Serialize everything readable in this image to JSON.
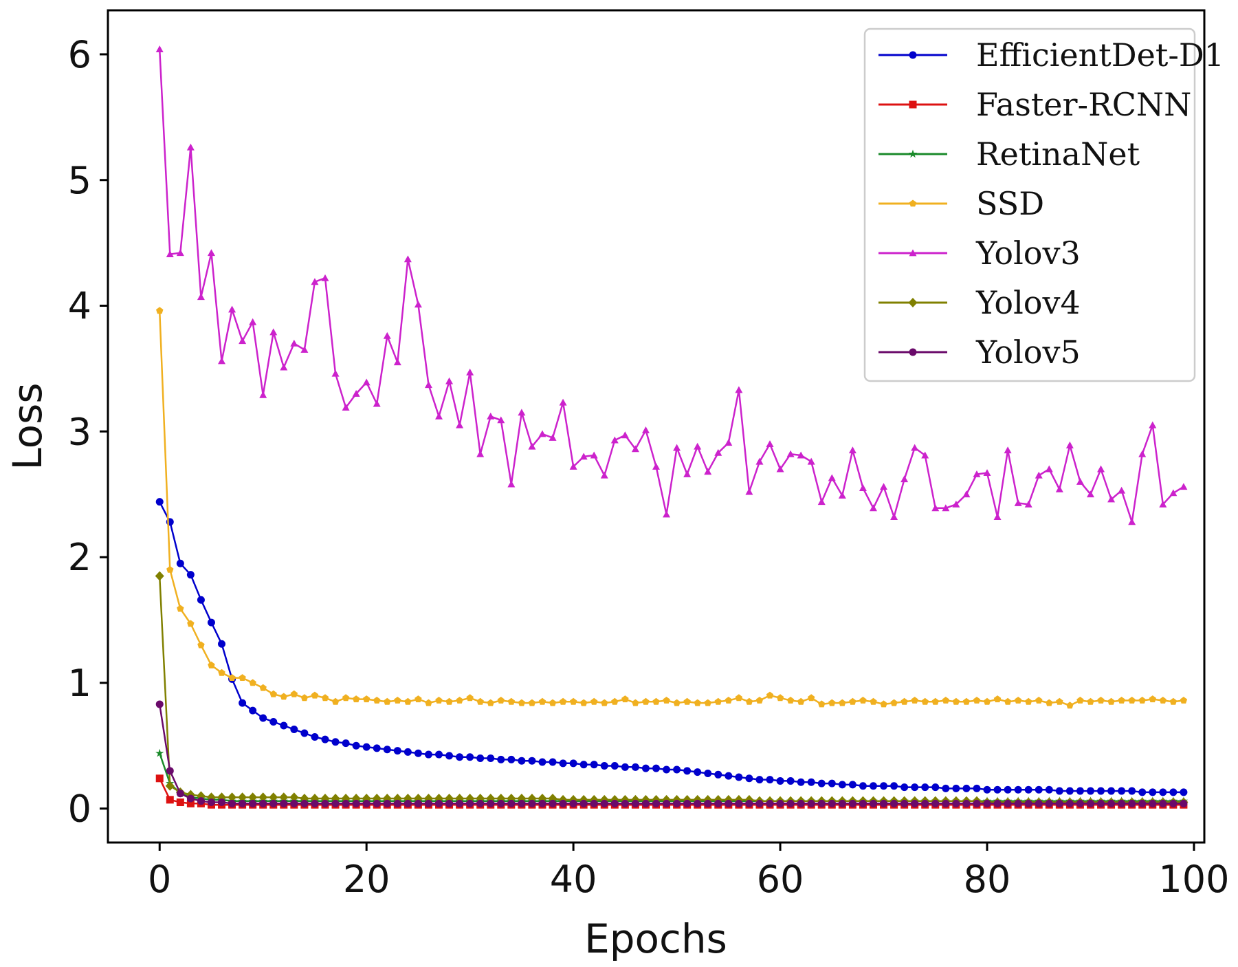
{
  "chart_data": {
    "type": "line",
    "title": "",
    "xlabel": "Epochs",
    "ylabel": "Loss",
    "xlim": [
      -5,
      101
    ],
    "ylim": [
      -0.27,
      6.35
    ],
    "xticks": [
      0,
      20,
      40,
      60,
      80,
      100
    ],
    "yticks": [
      0,
      1,
      2,
      3,
      4,
      5,
      6
    ],
    "grid": false,
    "legend_position": "top-right",
    "series": [
      {
        "name": "EfficientDet-D1",
        "color": "#0000cc",
        "marker": "circle",
        "values": [
          2.44,
          2.28,
          1.95,
          1.86,
          1.66,
          1.48,
          1.31,
          1.03,
          0.84,
          0.78,
          0.72,
          0.69,
          0.66,
          0.63,
          0.6,
          0.57,
          0.55,
          0.53,
          0.52,
          0.5,
          0.49,
          0.48,
          0.47,
          0.46,
          0.45,
          0.44,
          0.43,
          0.43,
          0.42,
          0.41,
          0.41,
          0.4,
          0.4,
          0.39,
          0.39,
          0.38,
          0.38,
          0.37,
          0.37,
          0.36,
          0.36,
          0.35,
          0.35,
          0.34,
          0.34,
          0.33,
          0.33,
          0.32,
          0.32,
          0.31,
          0.31,
          0.3,
          0.29,
          0.28,
          0.27,
          0.26,
          0.25,
          0.24,
          0.23,
          0.23,
          0.22,
          0.22,
          0.21,
          0.21,
          0.2,
          0.2,
          0.19,
          0.19,
          0.18,
          0.18,
          0.18,
          0.18,
          0.17,
          0.17,
          0.17,
          0.17,
          0.16,
          0.16,
          0.16,
          0.16,
          0.15,
          0.15,
          0.15,
          0.15,
          0.15,
          0.15,
          0.15,
          0.14,
          0.14,
          0.14,
          0.14,
          0.14,
          0.14,
          0.14,
          0.14,
          0.13,
          0.13,
          0.13,
          0.13,
          0.13
        ]
      },
      {
        "name": "Faster-RCNN",
        "color": "#dd1111",
        "marker": "square",
        "values": [
          0.24,
          0.07,
          0.05,
          0.04,
          0.04,
          0.03,
          0.03,
          0.03,
          0.03,
          0.03,
          0.03,
          0.03,
          0.03,
          0.03,
          0.03,
          0.03,
          0.03,
          0.03,
          0.03,
          0.03,
          0.03,
          0.03,
          0.03,
          0.03,
          0.03,
          0.03,
          0.03,
          0.03,
          0.03,
          0.03,
          0.03,
          0.03,
          0.03,
          0.03,
          0.03,
          0.03,
          0.03,
          0.03,
          0.03,
          0.03,
          0.03,
          0.03,
          0.03,
          0.03,
          0.03,
          0.03,
          0.03,
          0.03,
          0.03,
          0.03,
          0.03,
          0.03,
          0.03,
          0.03,
          0.03,
          0.03,
          0.03,
          0.03,
          0.03,
          0.03,
          0.03,
          0.03,
          0.03,
          0.03,
          0.03,
          0.03,
          0.03,
          0.03,
          0.03,
          0.03,
          0.03,
          0.03,
          0.03,
          0.03,
          0.03,
          0.03,
          0.03,
          0.03,
          0.03,
          0.03,
          0.03,
          0.03,
          0.03,
          0.03,
          0.03,
          0.03,
          0.03,
          0.03,
          0.03,
          0.03,
          0.03,
          0.03,
          0.03,
          0.03,
          0.03,
          0.03,
          0.03,
          0.03,
          0.03,
          0.03
        ]
      },
      {
        "name": "RetinaNet",
        "color": "#1a8a2a",
        "marker": "star",
        "values": [
          0.44,
          0.2,
          0.12,
          0.09,
          0.08,
          0.07,
          0.07,
          0.06,
          0.06,
          0.06,
          0.06,
          0.06,
          0.06,
          0.06,
          0.06,
          0.06,
          0.06,
          0.06,
          0.06,
          0.06,
          0.06,
          0.06,
          0.06,
          0.06,
          0.06,
          0.06,
          0.06,
          0.06,
          0.06,
          0.06,
          0.06,
          0.06,
          0.06,
          0.06,
          0.06,
          0.06,
          0.06,
          0.06,
          0.06,
          0.06,
          0.06,
          0.06,
          0.06,
          0.06,
          0.06,
          0.06,
          0.06,
          0.06,
          0.06,
          0.06,
          0.06,
          0.06,
          0.06,
          0.06,
          0.06,
          0.06,
          0.06,
          0.06,
          0.06,
          0.06,
          0.06,
          0.06,
          0.06,
          0.06,
          0.06,
          0.06,
          0.06,
          0.06,
          0.06,
          0.06,
          0.06,
          0.06,
          0.06,
          0.06,
          0.06,
          0.06,
          0.06,
          0.06,
          0.06,
          0.06,
          0.06,
          0.06,
          0.06,
          0.06,
          0.06,
          0.06,
          0.06,
          0.06,
          0.06,
          0.06,
          0.06,
          0.06,
          0.06,
          0.06,
          0.06,
          0.06,
          0.06,
          0.06,
          0.06,
          0.06
        ]
      },
      {
        "name": "SSD",
        "color": "#f0b020",
        "marker": "pentagon",
        "values": [
          3.96,
          1.9,
          1.59,
          1.47,
          1.3,
          1.14,
          1.08,
          1.04,
          1.04,
          1.0,
          0.96,
          0.91,
          0.89,
          0.91,
          0.88,
          0.9,
          0.88,
          0.85,
          0.88,
          0.87,
          0.87,
          0.86,
          0.85,
          0.86,
          0.85,
          0.87,
          0.84,
          0.86,
          0.85,
          0.86,
          0.88,
          0.85,
          0.84,
          0.86,
          0.85,
          0.84,
          0.84,
          0.85,
          0.84,
          0.85,
          0.85,
          0.84,
          0.85,
          0.84,
          0.85,
          0.87,
          0.84,
          0.85,
          0.85,
          0.86,
          0.84,
          0.85,
          0.84,
          0.84,
          0.85,
          0.86,
          0.88,
          0.85,
          0.86,
          0.9,
          0.88,
          0.86,
          0.85,
          0.88,
          0.83,
          0.84,
          0.84,
          0.85,
          0.86,
          0.85,
          0.83,
          0.84,
          0.85,
          0.86,
          0.85,
          0.85,
          0.86,
          0.85,
          0.85,
          0.86,
          0.85,
          0.87,
          0.85,
          0.86,
          0.85,
          0.86,
          0.84,
          0.85,
          0.82,
          0.86,
          0.85,
          0.86,
          0.85,
          0.86,
          0.86,
          0.86,
          0.87,
          0.86,
          0.85,
          0.86
        ]
      },
      {
        "name": "Yolov3",
        "color": "#cc22cc",
        "marker": "triangle",
        "values": [
          6.04,
          4.41,
          4.42,
          5.26,
          4.07,
          4.42,
          3.56,
          3.97,
          3.72,
          3.87,
          3.29,
          3.79,
          3.51,
          3.7,
          3.65,
          4.19,
          4.22,
          3.46,
          3.19,
          3.3,
          3.39,
          3.22,
          3.76,
          3.55,
          4.37,
          4.01,
          3.37,
          3.12,
          3.4,
          3.05,
          3.47,
          2.82,
          3.12,
          3.09,
          2.58,
          3.15,
          2.88,
          2.98,
          2.95,
          3.23,
          2.72,
          2.8,
          2.81,
          2.65,
          2.93,
          2.97,
          2.86,
          3.01,
          2.72,
          2.34,
          2.87,
          2.66,
          2.88,
          2.68,
          2.83,
          2.91,
          3.33,
          2.52,
          2.76,
          2.9,
          2.7,
          2.82,
          2.81,
          2.76,
          2.44,
          2.63,
          2.49,
          2.85,
          2.55,
          2.39,
          2.56,
          2.32,
          2.62,
          2.87,
          2.81,
          2.39,
          2.39,
          2.42,
          2.5,
          2.66,
          2.67,
          2.32,
          2.85,
          2.43,
          2.42,
          2.65,
          2.7,
          2.54,
          2.89,
          2.6,
          2.5,
          2.7,
          2.46,
          2.53,
          2.28,
          2.82,
          3.05,
          2.42,
          2.51,
          2.56
        ]
      },
      {
        "name": "Yolov4",
        "color": "#808000",
        "marker": "diamond",
        "values": [
          1.85,
          0.18,
          0.13,
          0.11,
          0.1,
          0.09,
          0.09,
          0.09,
          0.09,
          0.09,
          0.09,
          0.09,
          0.09,
          0.09,
          0.08,
          0.08,
          0.08,
          0.08,
          0.08,
          0.08,
          0.08,
          0.08,
          0.08,
          0.08,
          0.08,
          0.08,
          0.08,
          0.08,
          0.08,
          0.08,
          0.08,
          0.08,
          0.08,
          0.08,
          0.08,
          0.08,
          0.08,
          0.08,
          0.08,
          0.07,
          0.07,
          0.07,
          0.07,
          0.07,
          0.07,
          0.07,
          0.07,
          0.07,
          0.07,
          0.07,
          0.07,
          0.07,
          0.07,
          0.07,
          0.07,
          0.07,
          0.07,
          0.07,
          0.06,
          0.06,
          0.06,
          0.06,
          0.06,
          0.06,
          0.06,
          0.06,
          0.06,
          0.06,
          0.06,
          0.06,
          0.06,
          0.06,
          0.06,
          0.06,
          0.06,
          0.06,
          0.06,
          0.06,
          0.06,
          0.06,
          0.05,
          0.05,
          0.05,
          0.05,
          0.05,
          0.05,
          0.05,
          0.05,
          0.05,
          0.05,
          0.05,
          0.05,
          0.05,
          0.05,
          0.05,
          0.05,
          0.05,
          0.05,
          0.05,
          0.05
        ]
      },
      {
        "name": "Yolov5",
        "color": "#6a0a6a",
        "marker": "circle",
        "values": [
          0.83,
          0.3,
          0.12,
          0.08,
          0.06,
          0.05,
          0.05,
          0.04,
          0.04,
          0.04,
          0.04,
          0.04,
          0.04,
          0.04,
          0.04,
          0.04,
          0.04,
          0.04,
          0.04,
          0.04,
          0.04,
          0.04,
          0.04,
          0.04,
          0.04,
          0.04,
          0.04,
          0.04,
          0.04,
          0.04,
          0.04,
          0.04,
          0.04,
          0.04,
          0.04,
          0.04,
          0.04,
          0.04,
          0.04,
          0.04,
          0.04,
          0.04,
          0.04,
          0.04,
          0.04,
          0.04,
          0.04,
          0.04,
          0.04,
          0.04,
          0.04,
          0.04,
          0.04,
          0.04,
          0.04,
          0.04,
          0.04,
          0.04,
          0.04,
          0.04,
          0.04,
          0.04,
          0.04,
          0.04,
          0.04,
          0.04,
          0.04,
          0.04,
          0.04,
          0.04,
          0.04,
          0.04,
          0.04,
          0.04,
          0.04,
          0.04,
          0.04,
          0.04,
          0.04,
          0.04,
          0.04,
          0.04,
          0.04,
          0.04,
          0.04,
          0.04,
          0.04,
          0.04,
          0.04,
          0.04,
          0.04,
          0.04,
          0.04,
          0.04,
          0.04,
          0.04,
          0.04,
          0.04,
          0.04,
          0.04
        ]
      }
    ]
  }
}
